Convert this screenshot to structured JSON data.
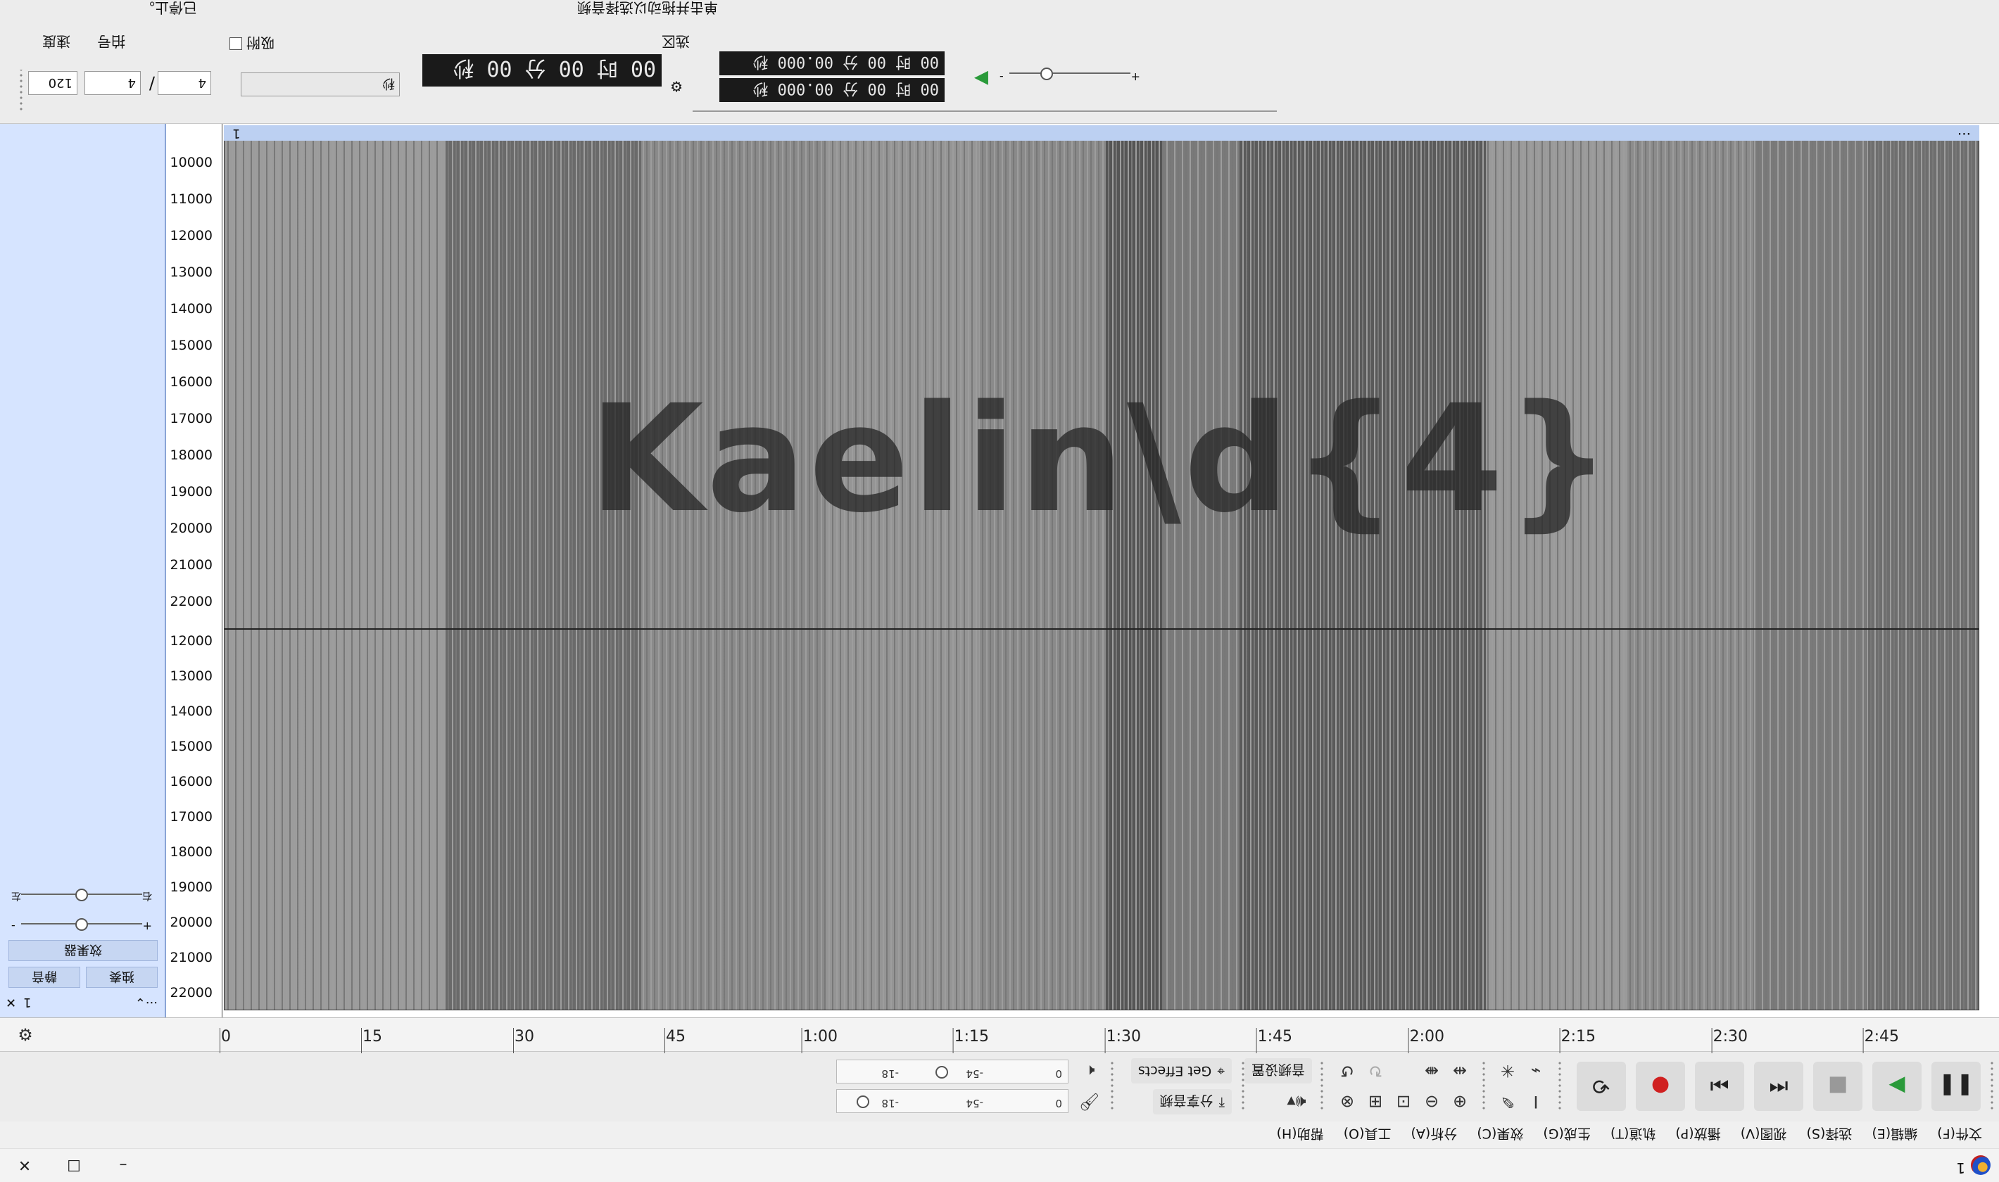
{
  "window": {
    "title": "1",
    "minimize": "–",
    "maximize": "☐",
    "close": "✕"
  },
  "menus": [
    "文件(F)",
    "编辑(E)",
    "选择(S)",
    "视图(V)",
    "播放(P)",
    "轨道(T)",
    "生成(G)",
    "效果(C)",
    "分析(A)",
    "工具(O)",
    "帮助(H)"
  ],
  "transport": {
    "effects_label": "Get Effects",
    "audio_setup_label": "音频设置",
    "share_label": "分享音频",
    "meter_ticks": [
      "0",
      "-18",
      "-54"
    ]
  },
  "ruler": {
    "ticks": [
      "0",
      "15",
      "30",
      "45",
      "1:00",
      "1:15",
      "1:30",
      "1:45",
      "2:00",
      "2:15",
      "2:30",
      "2:45"
    ]
  },
  "track": {
    "name": "1",
    "mute_label": "静音",
    "solo_label": "独奏",
    "effects_label": "效果器",
    "gain_minus": "-",
    "gain_plus": "+",
    "pan_left": "左",
    "pan_right": "右",
    "more": "···",
    "clip_name": "1",
    "clip_more": "···",
    "freq_ticks_top": [
      "22000",
      "21000",
      "20000",
      "19000",
      "18000",
      "17000",
      "16000",
      "15000",
      "14000",
      "13000",
      "12000",
      "11000",
      "10000"
    ],
    "freq_ticks_bottom": [
      "22000",
      "21000",
      "20000",
      "19000",
      "18000",
      "17000",
      "16000",
      "15000",
      "14000",
      "13000",
      "12000"
    ],
    "watermark": "Kaelin\\d{4}"
  },
  "selection_toolbar": {
    "tempo_value": "120",
    "tempo_label": "速度",
    "time_sig_num": "4",
    "time_sig_den": "4",
    "time_sig_label": "拍号",
    "snap_value": "秒",
    "snap_label": "吸附",
    "time_display": "00 时 00 分 00 秒",
    "sel_start": "00 时 00 分 00.000 秒",
    "sel_end": "00 时 00 分 00.000 秒",
    "sel_label": "选区",
    "speed_minus": "-",
    "speed_plus": "+"
  },
  "status": {
    "left": "已停止。",
    "right": "单击并拖动以选择音频"
  }
}
